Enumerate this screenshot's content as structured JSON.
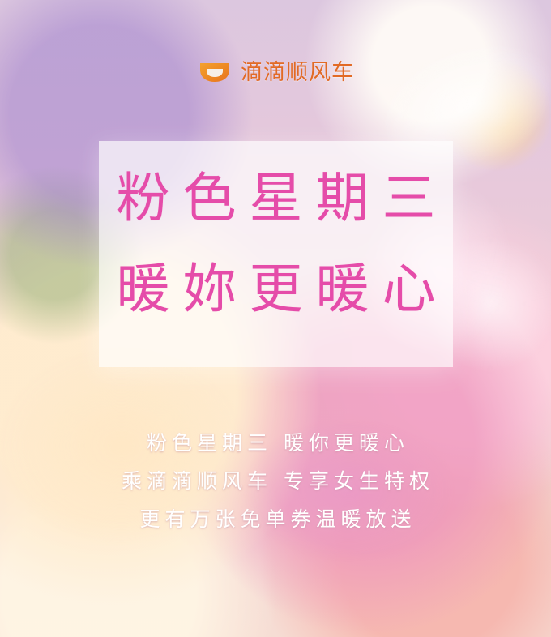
{
  "brand": {
    "name": "滴滴顺风车",
    "icon_name": "didi-logo-icon",
    "color": "#e26a25"
  },
  "title": {
    "line1": "粉色星期三",
    "line2": "暖妳更暖心",
    "color": "#e54ca9"
  },
  "body": {
    "line1": "粉色星期三 暖你更暖心",
    "line2": "乘滴滴顺风车 专享女生特权",
    "line3": "更有万张免单券温暖放送",
    "color": "#ffffff"
  }
}
